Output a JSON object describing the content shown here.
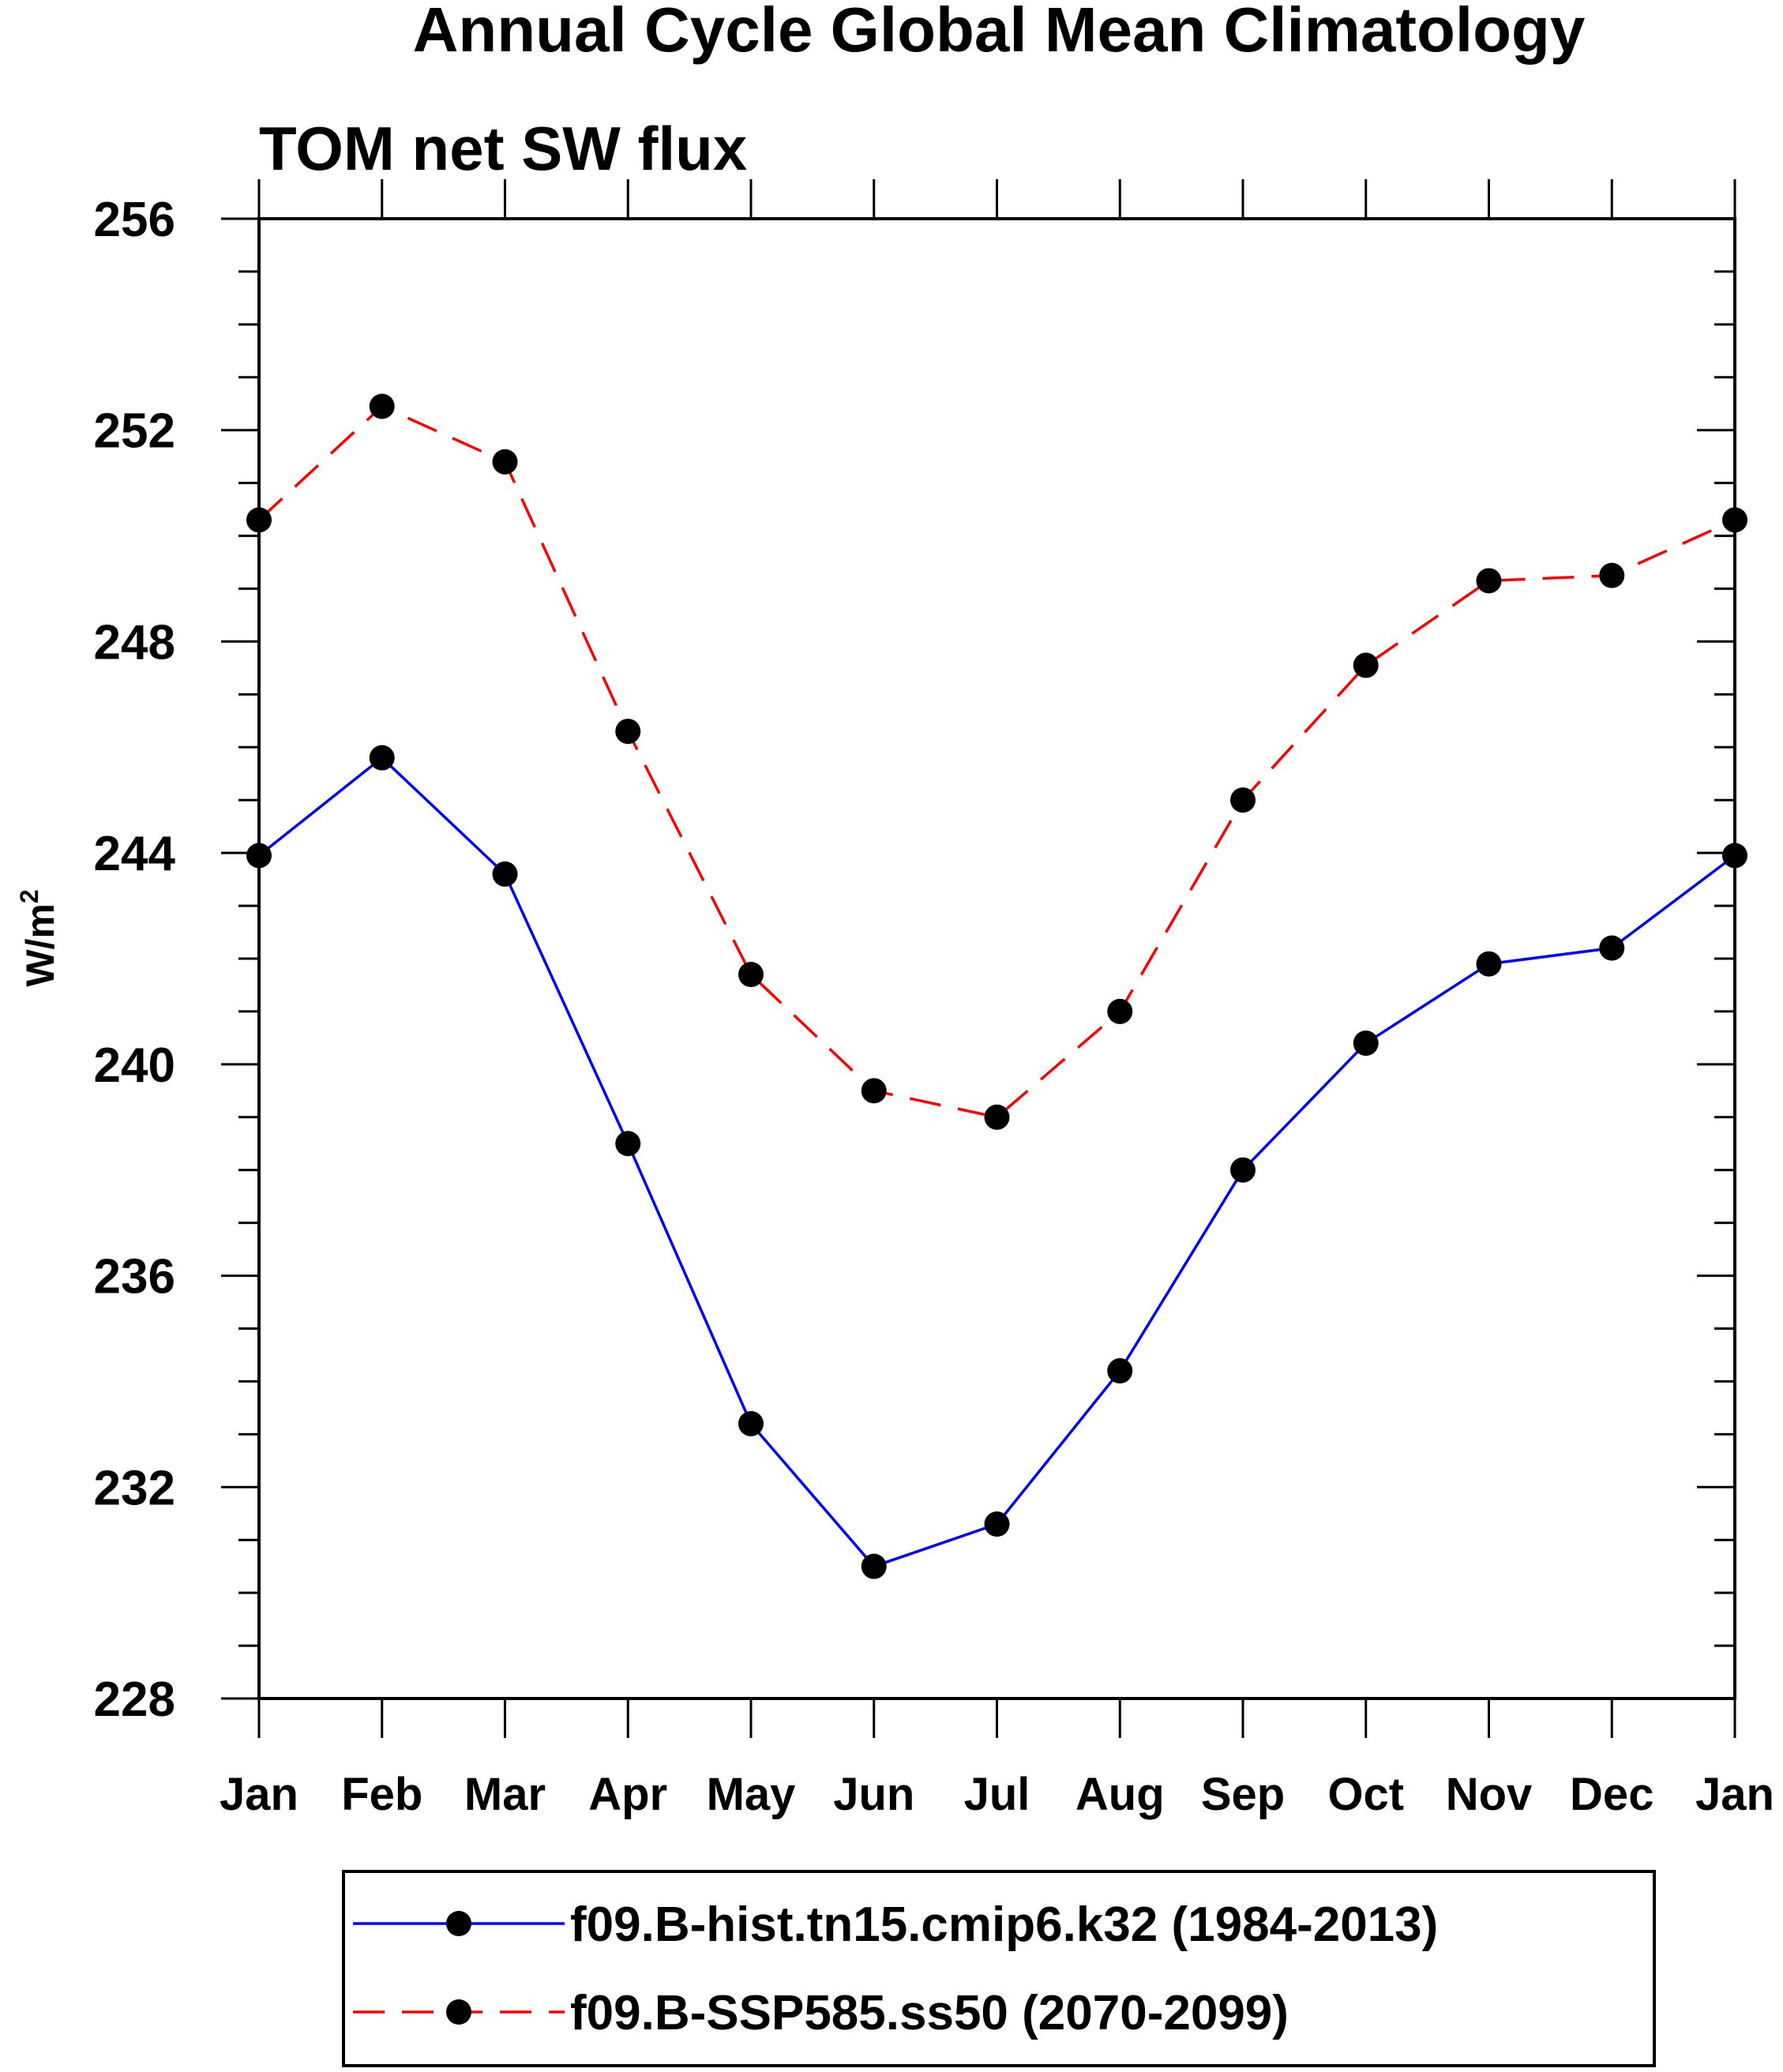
{
  "chart_data": {
    "type": "line",
    "title": "Annual Cycle Global Mean Climatology",
    "subtitle": "TOM net SW flux",
    "xlabel": "",
    "ylabel": "W/m",
    "ylabel_superscript": "2",
    "categories": [
      "Jan",
      "Feb",
      "Mar",
      "Apr",
      "May",
      "Jun",
      "Jul",
      "Aug",
      "Sep",
      "Oct",
      "Nov",
      "Dec",
      "Jan"
    ],
    "ylim": [
      228,
      256
    ],
    "yticks": [
      "228",
      "232",
      "236",
      "240",
      "244",
      "248",
      "252",
      "256"
    ],
    "ytick_values": [
      228,
      232,
      236,
      240,
      244,
      248,
      252,
      256
    ],
    "grid": false,
    "legend_position": "bottom",
    "series": [
      {
        "name": "f09.B-hist.tn15.cmip6.k32 (1984-2013)",
        "color": "#0000ff",
        "line_style": "solid",
        "marker": "filled-circle",
        "values": [
          243.95,
          245.8,
          243.6,
          238.5,
          233.2,
          230.5,
          231.3,
          234.2,
          238.0,
          240.4,
          241.9,
          242.2,
          243.95
        ]
      },
      {
        "name": "f09.B-SSP585.ss50 (2070-2099)",
        "color": "#ff0000",
        "line_style": "dashed",
        "marker": "filled-circle",
        "values": [
          250.3,
          252.45,
          251.4,
          246.3,
          241.7,
          239.5,
          239.0,
          241.0,
          245.0,
          247.55,
          249.15,
          249.25,
          250.3
        ]
      }
    ]
  }
}
